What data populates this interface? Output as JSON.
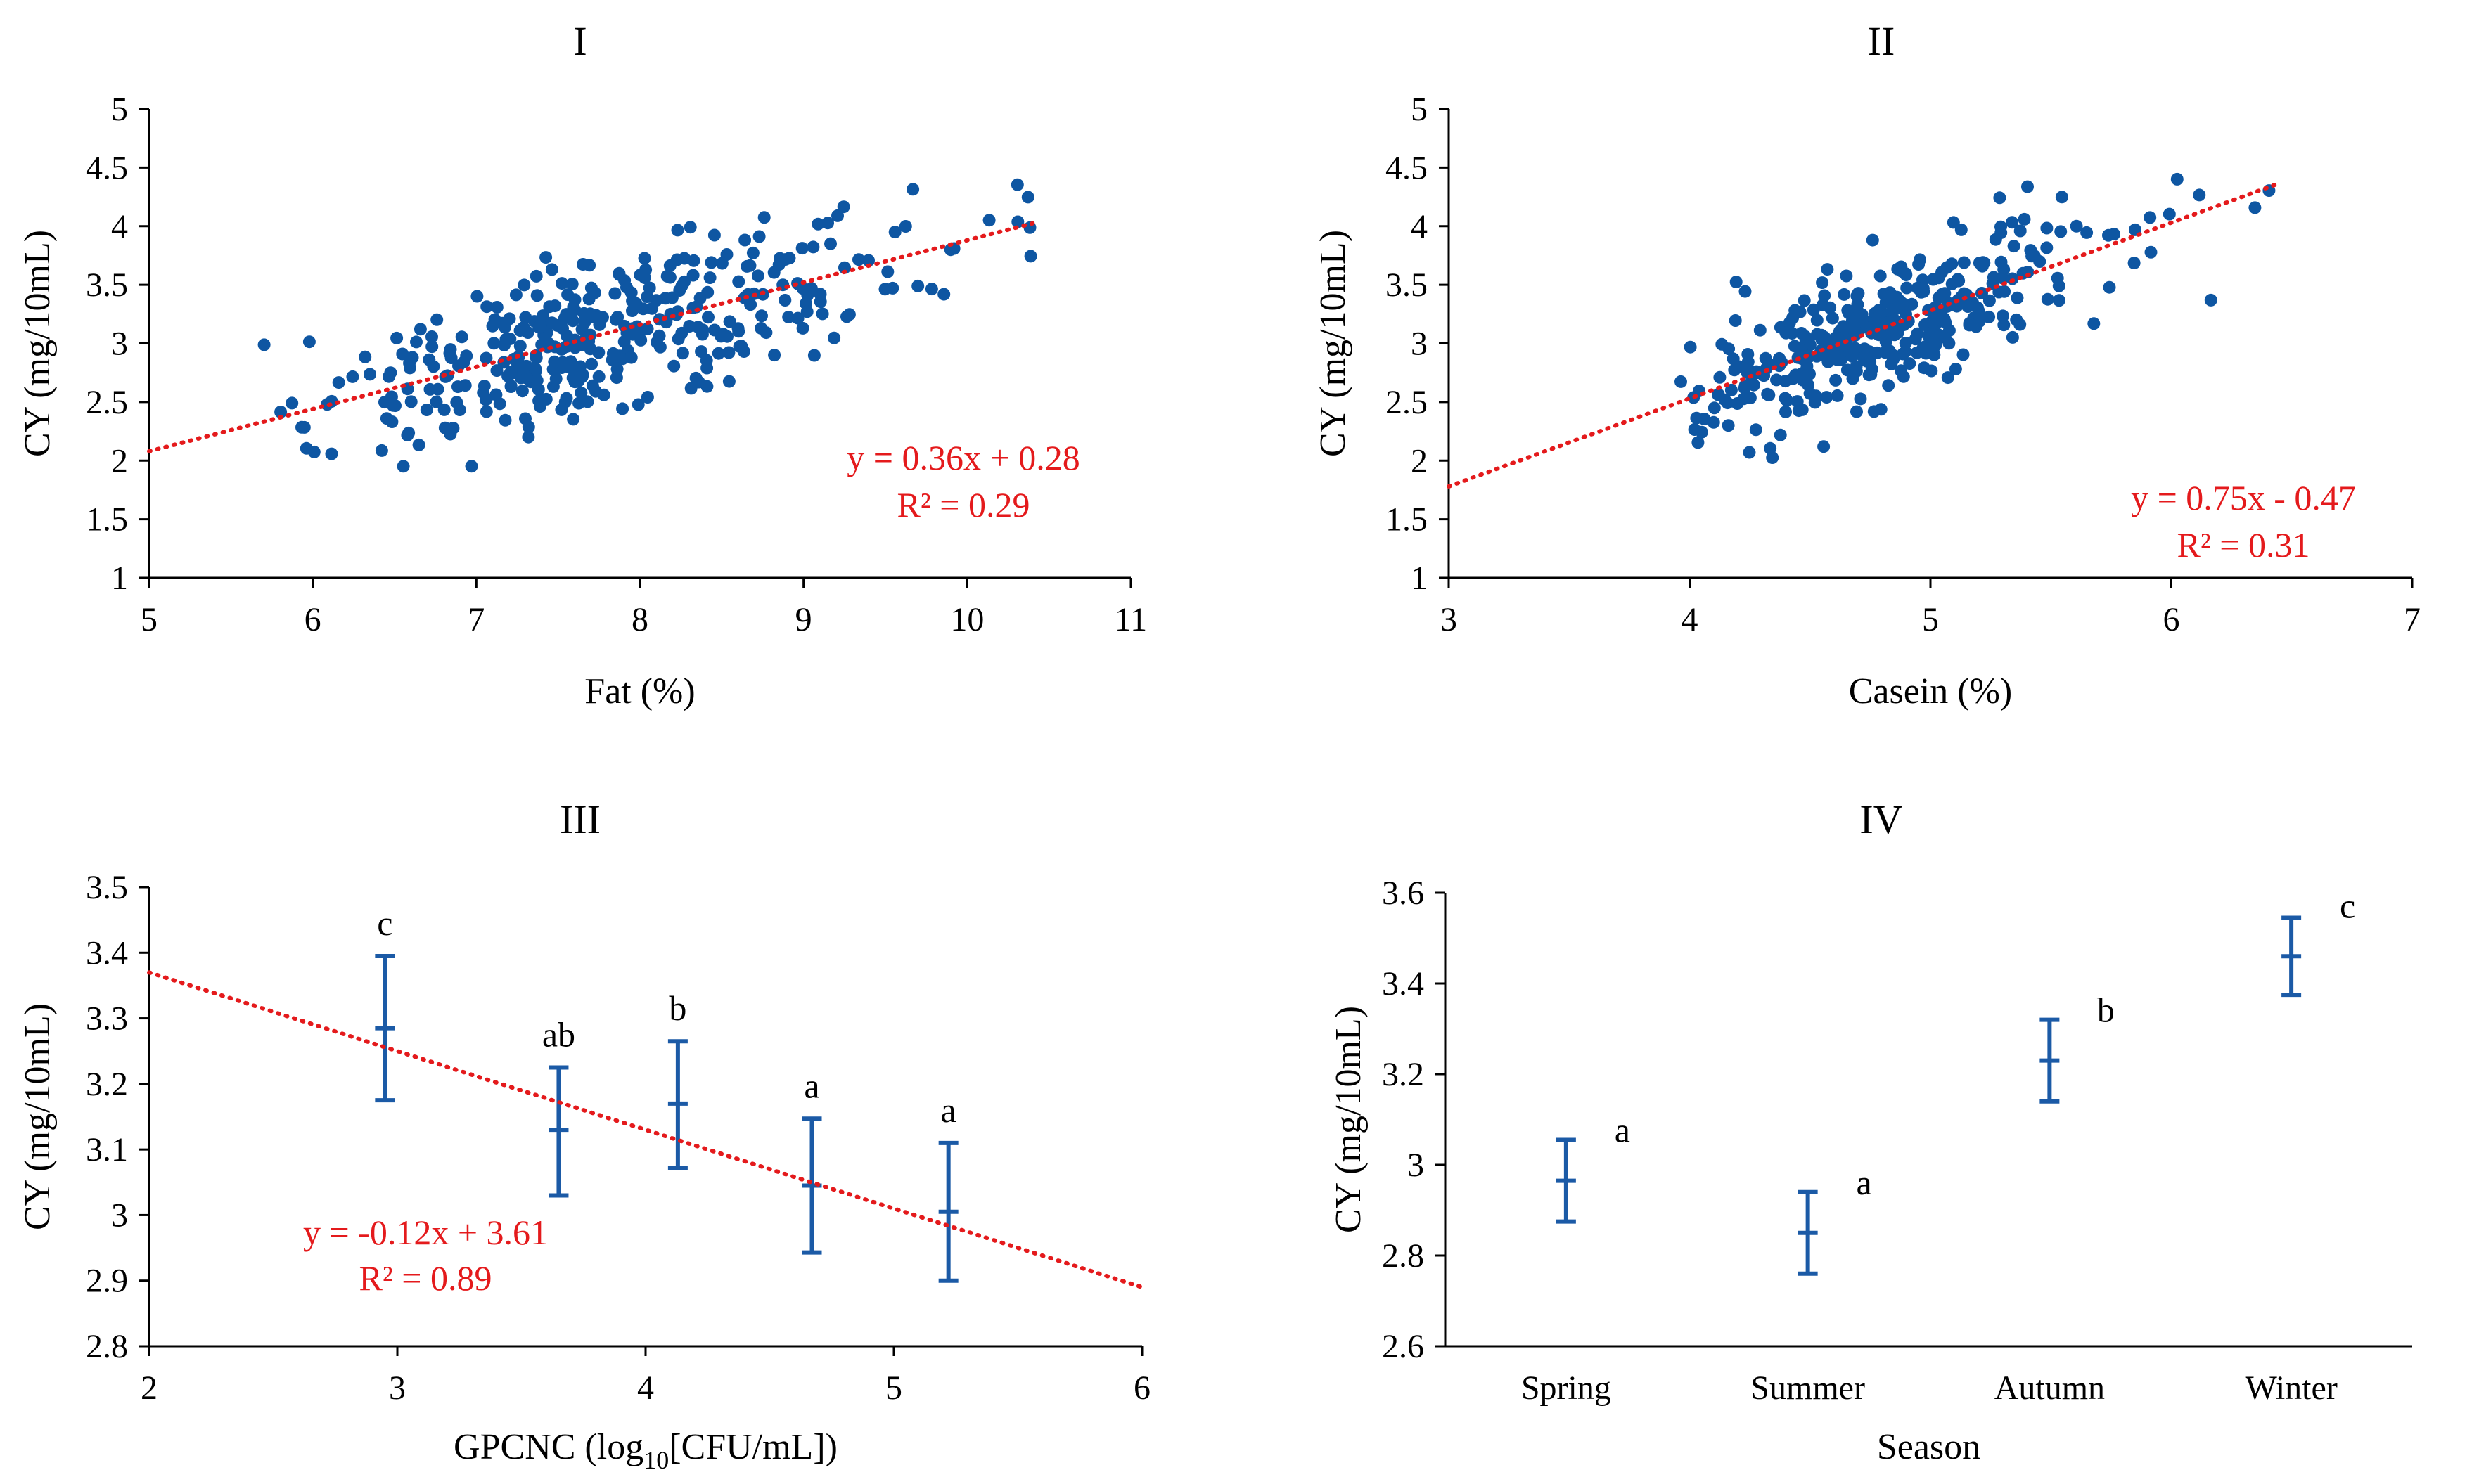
{
  "chart_data": [
    {
      "id": "I",
      "type": "scatter",
      "title": "I",
      "xlabel": "Fat (%)",
      "ylabel": "CY (mg/10mL)",
      "xlim": [
        5,
        11
      ],
      "ylim": [
        1,
        5
      ],
      "xticks": [
        5,
        6,
        7,
        8,
        9,
        10,
        11
      ],
      "yticks": [
        1,
        1.5,
        2,
        2.5,
        3,
        3.5,
        4,
        4.5,
        5
      ],
      "trendline": {
        "slope": 0.36,
        "intercept": 0.28,
        "x_range": [
          5,
          10.4
        ]
      },
      "equation": "y = 0.36x + 0.28",
      "r2": "R² = 0.29",
      "point_model": {
        "count": 380,
        "x_range": [
          5.7,
          10.4
        ],
        "x_center": 7.8,
        "x_spread": 0.8,
        "residual_sd": 0.33,
        "seed": 11
      }
    },
    {
      "id": "II",
      "type": "scatter",
      "title": "II",
      "xlabel": "Casein (%)",
      "ylabel": "CY (mg/10mL)",
      "xlim": [
        3,
        7
      ],
      "ylim": [
        1,
        5
      ],
      "xticks": [
        3,
        4,
        5,
        6,
        7
      ],
      "yticks": [
        1,
        1.5,
        2,
        2.5,
        3,
        3.5,
        4,
        4.5,
        5
      ],
      "trendline": {
        "slope": 0.75,
        "intercept": -0.47,
        "x_range": [
          3,
          6.45
        ]
      },
      "equation": "y = 0.75x - 0.47",
      "r2": "R² = 0.31",
      "point_model": {
        "count": 380,
        "x_range": [
          3.95,
          6.45
        ],
        "x_center": 4.75,
        "x_spread": 0.38,
        "residual_sd": 0.3,
        "seed": 29
      }
    },
    {
      "id": "III",
      "type": "errorbar",
      "title": "III",
      "xlabel_main": "GPCNC (log",
      "xlabel_sub": "10",
      "xlabel_tail": "[CFU/mL])",
      "ylabel": "CY (mg/10mL)",
      "xlim": [
        2,
        6
      ],
      "ylim": [
        2.8,
        3.5
      ],
      "xticks": [
        2,
        3,
        4,
        5,
        6
      ],
      "yticks": [
        2.8,
        2.9,
        3,
        3.1,
        3.2,
        3.3,
        3.4,
        3.5
      ],
      "points": [
        {
          "x": 2.95,
          "y": 3.285,
          "low": 3.175,
          "high": 3.395,
          "letter": "c"
        },
        {
          "x": 3.65,
          "y": 3.13,
          "low": 3.03,
          "high": 3.225,
          "letter": "ab"
        },
        {
          "x": 4.13,
          "y": 3.17,
          "low": 3.072,
          "high": 3.265,
          "letter": "b"
        },
        {
          "x": 4.67,
          "y": 3.045,
          "low": 2.943,
          "high": 3.147,
          "letter": "a"
        },
        {
          "x": 5.22,
          "y": 3.005,
          "low": 2.9,
          "high": 3.11,
          "letter": "a"
        }
      ],
      "trendline": {
        "slope": -0.12,
        "intercept": 3.61,
        "x_range": [
          2,
          6
        ]
      },
      "equation": "y = -0.12x + 3.61",
      "r2": "R² = 0.89"
    },
    {
      "id": "IV",
      "type": "errorbar",
      "title": "IV",
      "xlabel": "Season",
      "ylabel": "CY (mg/10mL)",
      "categories": [
        "Spring",
        "Summer",
        "Autumn",
        "Winter"
      ],
      "ylim": [
        2.6,
        3.6
      ],
      "yticks": [
        2.6,
        2.8,
        3,
        3.2,
        3.4,
        3.6
      ],
      "points": [
        {
          "y": 2.965,
          "low": 2.875,
          "high": 3.055,
          "letter": "a"
        },
        {
          "y": 2.85,
          "low": 2.76,
          "high": 2.94,
          "letter": "a"
        },
        {
          "y": 3.23,
          "low": 3.14,
          "high": 3.32,
          "letter": "b"
        },
        {
          "y": 3.46,
          "low": 3.375,
          "high": 3.545,
          "letter": "c"
        }
      ]
    }
  ]
}
